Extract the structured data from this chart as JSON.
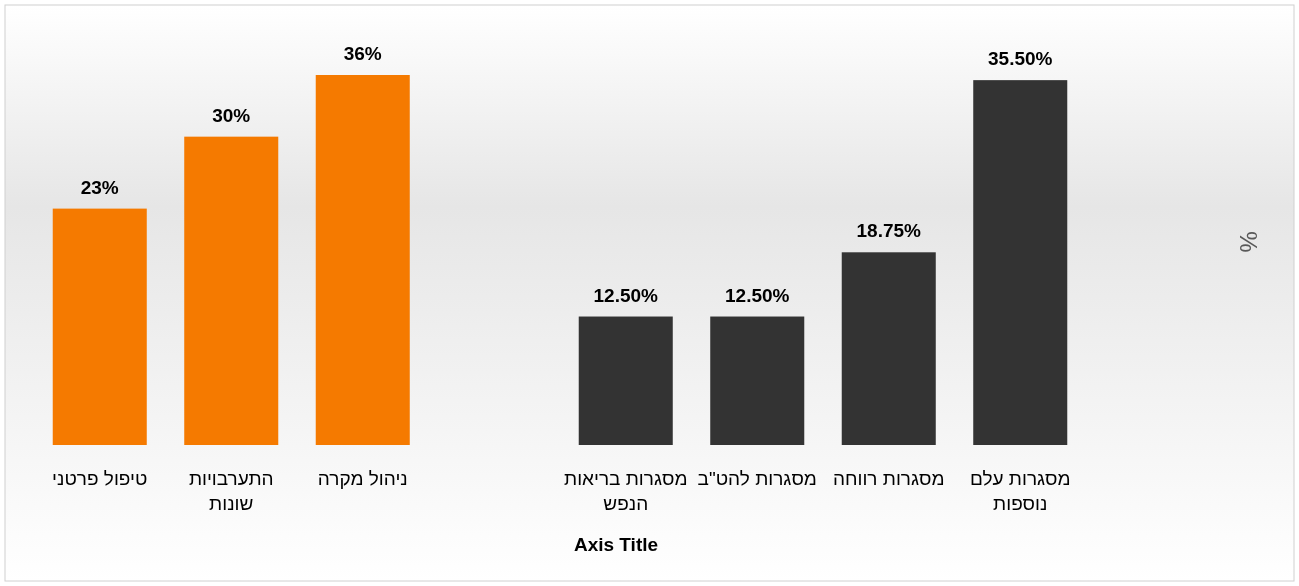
{
  "chart_data": {
    "type": "bar",
    "categories": [
      "טיפול פרטני",
      "התערבויות שונות",
      "ניהול מקרה",
      null,
      "מסגרות בריאות הנפש",
      "מסגרות להט\"ב",
      "מסגרות רווחה",
      "מסגרות עלם נוספות"
    ],
    "values": [
      23,
      30,
      36,
      null,
      12.5,
      12.5,
      18.75,
      35.5
    ],
    "colors": [
      "#f57a00",
      "#f57a00",
      "#f57a00",
      null,
      "#333333",
      "#333333",
      "#333333",
      "#333333"
    ],
    "value_labels": [
      "23%",
      "30%",
      "36%",
      null,
      "12.50%",
      "12.50%",
      "18.75%",
      "35.50%"
    ],
    "xlabel": "Axis Title",
    "annotations": [
      "%"
    ]
  }
}
